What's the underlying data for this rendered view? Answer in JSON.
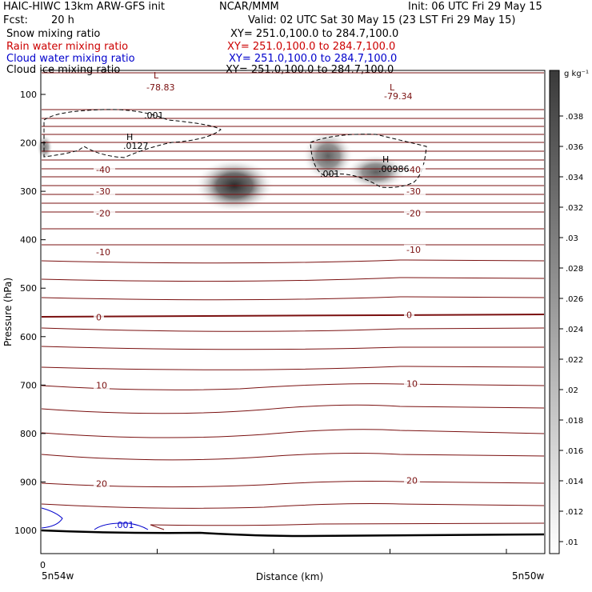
{
  "header": {
    "title": "HAIC-HIWC 13km ARW-GFS init",
    "org": "NCAR/MMM",
    "init": "Init: 06 UTC Fri 29 May 15",
    "fcst_label": "Fcst:",
    "fcst_value": "20 h",
    "valid": "Valid: 02 UTC Sat 30 May 15 (23 LST Fri 29 May 15)",
    "fields": [
      {
        "name": "Snow mixing ratio",
        "xy": "XY= 251.0,100.0 to 284.7,100.0",
        "color": "#000000"
      },
      {
        "name": "Rain water mixing ratio",
        "xy": "XY= 251.0,100.0 to 284.7,100.0",
        "color": "#cc0000"
      },
      {
        "name": "Cloud water mixing ratio",
        "xy": "XY= 251.0,100.0 to 284.7,100.0",
        "color": "#0000cc"
      },
      {
        "name": "Cloud ice mixing ratio",
        "xy": "XY= 251.0,100.0 to 284.7,100.0",
        "color": "#000000"
      }
    ]
  },
  "colors": {
    "temperature_contour": "#7a1010",
    "ice_contour": "#000000",
    "cloud_water_contour": "#0000cc",
    "ground": "#000000"
  },
  "chart_data": {
    "type": "contour cross-section",
    "xlabel": "Distance (km)",
    "ylabel": "Pressure (hPa)",
    "x_left_label": "5n54w",
    "x_right_label": "5n50w",
    "x_origin_tick": "0",
    "y_ticks": [
      "100",
      "200",
      "300",
      "400",
      "500",
      "600",
      "700",
      "800",
      "900",
      "1000"
    ],
    "temperature_labels": [
      {
        "text": "-40",
        "p": 255,
        "side": "left"
      },
      {
        "text": "-40",
        "p": 255,
        "side": "right"
      },
      {
        "text": "-30",
        "p": 300,
        "side": "left"
      },
      {
        "text": "-30",
        "p": 300,
        "side": "right"
      },
      {
        "text": "-20",
        "p": 345,
        "side": "left"
      },
      {
        "text": "-20",
        "p": 345,
        "side": "right"
      },
      {
        "text": "-10",
        "p": 425,
        "side": "left"
      },
      {
        "text": "-10",
        "p": 420,
        "side": "right"
      },
      {
        "text": "0",
        "p": 560,
        "side": "left"
      },
      {
        "text": "0",
        "p": 555,
        "side": "right"
      },
      {
        "text": "10",
        "p": 700,
        "side": "left"
      },
      {
        "text": "10",
        "p": 697,
        "side": "right"
      },
      {
        "text": "20",
        "p": 903,
        "side": "left"
      },
      {
        "text": "20",
        "p": 897,
        "side": "right"
      }
    ],
    "lows": [
      {
        "symbol": "L",
        "value": "-78.83"
      },
      {
        "symbol": "L",
        "value": "-79.34"
      }
    ],
    "highs": [
      {
        "symbol": "H",
        "value": ".0127"
      },
      {
        "symbol": "H",
        "value": ".00986"
      }
    ],
    "ice_contour_labels": [
      ".001",
      ".001"
    ],
    "cloud_water_label": ".001",
    "colorbar": {
      "unit": "g kg⁻¹",
      "ticks": [
        ".038",
        ".036",
        ".034",
        ".032",
        ".03",
        ".028",
        ".026",
        ".024",
        ".022",
        ".02",
        ".018",
        ".016",
        ".014",
        ".012",
        ".01"
      ]
    }
  }
}
